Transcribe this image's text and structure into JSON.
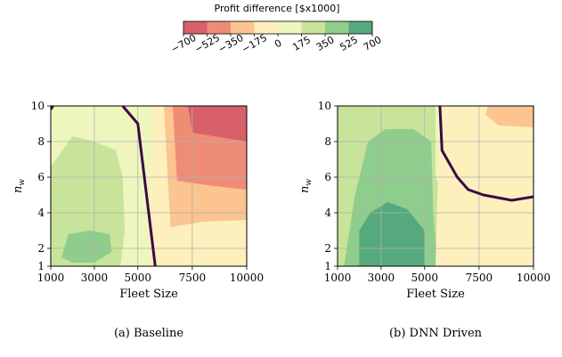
{
  "colorbar": {
    "title": "Profit difference [$x1000]",
    "levels": [
      -700,
      -525,
      -350,
      -175,
      0,
      175,
      350,
      525,
      700
    ],
    "tick_labels": [
      "−700",
      "−525",
      "−350",
      "−175",
      "0",
      "175",
      "350",
      "525",
      "700"
    ],
    "colors": [
      "#d7606a",
      "#ef8c76",
      "#fbc490",
      "#fdf0bd",
      "#eef6be",
      "#c8e49a",
      "#8fcd8c",
      "#55a97d"
    ]
  },
  "chart_data": [
    {
      "type": "heatmap",
      "caption": "(a)  Baseline",
      "xlabel": "Fleet Size",
      "ylabel": "n_w",
      "xlim": [
        1000,
        10000
      ],
      "ylim": [
        1,
        10
      ],
      "xticks": [
        1000,
        3000,
        5000,
        7500,
        10000
      ],
      "xtick_labels": [
        "1000",
        "3000",
        "5000",
        "7500",
        "10000"
      ],
      "yticks": [
        1,
        2,
        4,
        6,
        8,
        10
      ],
      "ytick_labels": [
        "1",
        "2",
        "4",
        "6",
        "8",
        "10"
      ],
      "grid": true,
      "background_level": "0 to 175",
      "regions": [
        {
          "level": "175 to 350",
          "points": [
            [
              1000,
              1
            ],
            [
              4200,
              1
            ],
            [
              4400,
              3
            ],
            [
              4300,
              6
            ],
            [
              4000,
              7.5
            ],
            [
              3000,
              8
            ],
            [
              2000,
              8.3
            ],
            [
              1000,
              6.6
            ]
          ]
        },
        {
          "level": "350 to 525",
          "points": [
            [
              1500,
              1.5
            ],
            [
              1800,
              2.8
            ],
            [
              2800,
              3
            ],
            [
              3700,
              2.8
            ],
            [
              3800,
              1.8
            ],
            [
              3000,
              1.2
            ],
            [
              2000,
              1.2
            ]
          ]
        },
        {
          "level": "-175 to 0",
          "points": [
            [
              5500,
              1
            ],
            [
              5700,
              10
            ],
            [
              10000,
              10
            ],
            [
              10000,
              1
            ]
          ]
        },
        {
          "level": "-350 to -175",
          "points": [
            [
              6500,
              3.2
            ],
            [
              6200,
              10
            ],
            [
              10000,
              10
            ],
            [
              10000,
              3.6
            ],
            [
              8000,
              3.5
            ]
          ]
        },
        {
          "level": "-525 to -350",
          "points": [
            [
              6800,
              5.8
            ],
            [
              6600,
              10
            ],
            [
              10000,
              10
            ],
            [
              10000,
              5.3
            ],
            [
              8500,
              5.5
            ]
          ]
        },
        {
          "level": "-700 to -525",
          "points": [
            [
              7500,
              8.5
            ],
            [
              7300,
              10
            ],
            [
              10000,
              10
            ],
            [
              10000,
              8
            ]
          ]
        }
      ],
      "zero_contour": [
        [
          4300,
          10
        ],
        [
          5000,
          9
        ],
        [
          5300,
          6
        ],
        [
          5600,
          3
        ],
        [
          5800,
          1
        ]
      ],
      "zero_contour_corner": [
        [
          1000,
          9.8
        ],
        [
          1100,
          10
        ]
      ]
    },
    {
      "type": "heatmap",
      "caption": "(b)  DNN Driven",
      "xlabel": "Fleet Size",
      "ylabel": "n_w",
      "xlim": [
        1000,
        10000
      ],
      "ylim": [
        1,
        10
      ],
      "xticks": [
        1000,
        3000,
        5000,
        7500,
        10000
      ],
      "xtick_labels": [
        "1000",
        "3000",
        "5000",
        "7500",
        "10000"
      ],
      "yticks": [
        1,
        2,
        4,
        6,
        8,
        10
      ],
      "ytick_labels": [
        "1",
        "2",
        "4",
        "6",
        "8",
        "10"
      ],
      "grid": true,
      "background_level": "0 to 175",
      "regions": [
        {
          "level": "175 to 350",
          "points": [
            [
              1000,
              1
            ],
            [
              1000,
              10
            ],
            [
              5500,
              10
            ],
            [
              5500,
              6
            ],
            [
              6500,
              3.5
            ],
            [
              7000,
              1
            ]
          ]
        },
        {
          "level": "350 to 525",
          "points": [
            [
              1300,
              1
            ],
            [
              1800,
              5
            ],
            [
              2400,
              8
            ],
            [
              3200,
              8.7
            ],
            [
              4500,
              8.7
            ],
            [
              5300,
              8
            ],
            [
              5400,
              4
            ],
            [
              5600,
              1
            ]
          ]
        },
        {
          "level": "525 to 700",
          "points": [
            [
              2000,
              1
            ],
            [
              2000,
              3
            ],
            [
              2500,
              4
            ],
            [
              3300,
              4.6
            ],
            [
              4200,
              4.2
            ],
            [
              5000,
              3
            ],
            [
              5000,
              1
            ]
          ]
        },
        {
          "level": "-175 to 0",
          "points": [
            [
              5700,
              10
            ],
            [
              5500,
              1
            ],
            [
              10000,
              1
            ],
            [
              10000,
              10
            ]
          ]
        },
        {
          "level": "-350 to -175",
          "points": [
            [
              7900,
              10
            ],
            [
              7800,
              9.5
            ],
            [
              8400,
              8.9
            ],
            [
              10000,
              8.8
            ],
            [
              10000,
              10
            ]
          ]
        }
      ],
      "zero_contour": [
        [
          5700,
          10
        ],
        [
          5800,
          7.5
        ],
        [
          6500,
          6
        ],
        [
          7000,
          5.3
        ],
        [
          7700,
          5
        ],
        [
          9000,
          4.7
        ],
        [
          10000,
          4.9
        ]
      ]
    }
  ]
}
